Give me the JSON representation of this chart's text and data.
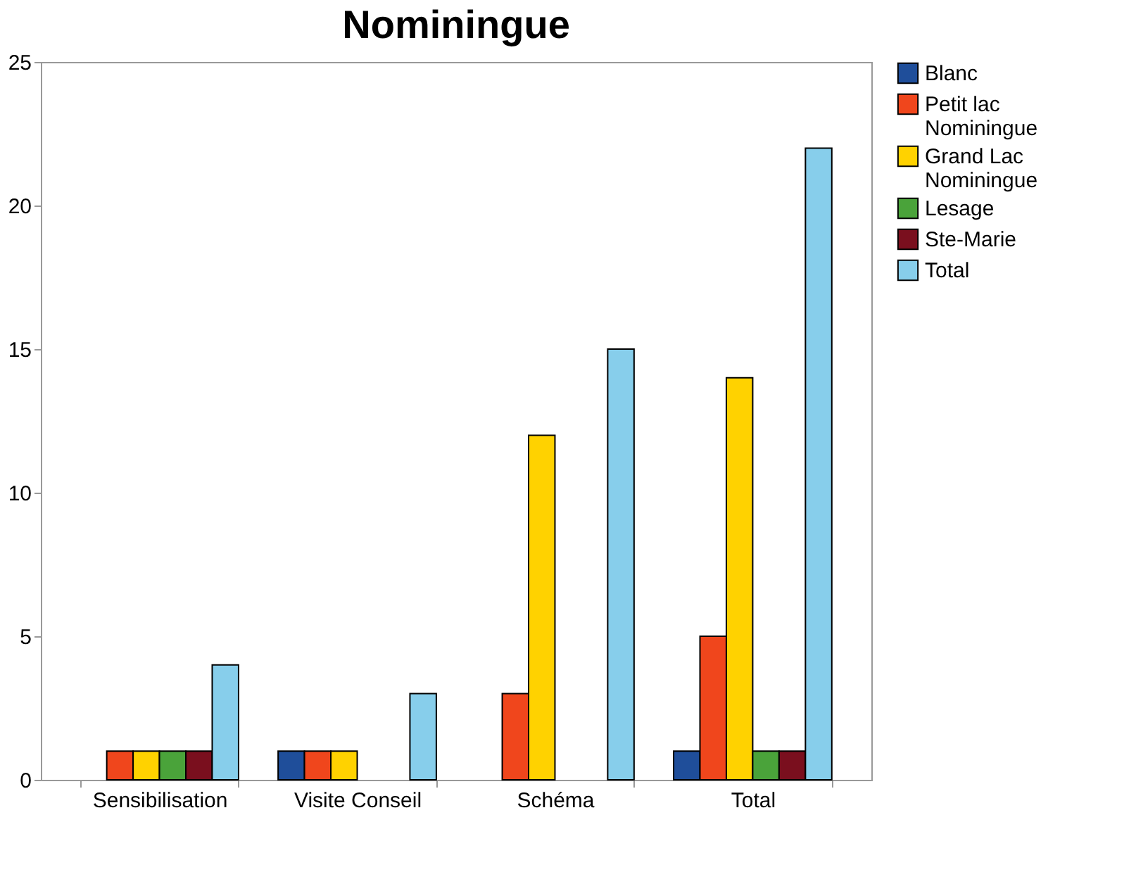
{
  "chart_data": {
    "type": "bar",
    "title": "Nominingue",
    "categories": [
      "Sensibilisation",
      "Visite Conseil",
      "Schéma",
      "Total"
    ],
    "series": [
      {
        "name": "Blanc",
        "color": "#1f4e9a",
        "values": [
          null,
          1,
          null,
          1
        ]
      },
      {
        "name": "Petit lac Nominingue",
        "color": "#f0461c",
        "values": [
          1,
          1,
          3,
          5
        ]
      },
      {
        "name": "Grand Lac Nominingue",
        "color": "#ffd200",
        "values": [
          1,
          1,
          12,
          14
        ]
      },
      {
        "name": "Lesage",
        "color": "#4aa33a",
        "values": [
          1,
          null,
          null,
          1
        ]
      },
      {
        "name": "Ste-Marie",
        "color": "#7a0f1e",
        "values": [
          1,
          null,
          null,
          1
        ]
      },
      {
        "name": "Total",
        "color": "#87ceeb",
        "values": [
          4,
          3,
          15,
          22
        ]
      }
    ],
    "ylim": [
      0,
      25
    ],
    "yticks": [
      0,
      5,
      10,
      15,
      20,
      25
    ],
    "grid": false,
    "legend": "right"
  }
}
